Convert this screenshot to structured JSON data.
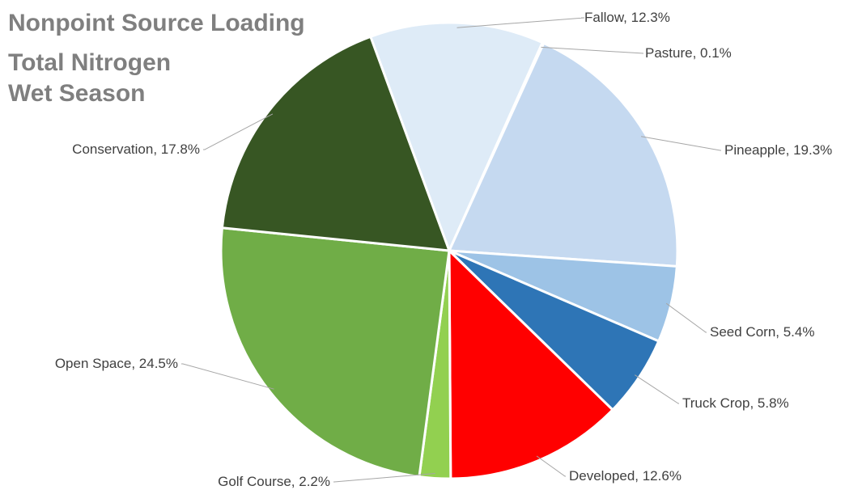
{
  "chart_data": {
    "type": "pie",
    "title_lines": [
      "Nonpoint Source Loading",
      "Total Nitrogen",
      "Wet Season"
    ],
    "slices": [
      {
        "name": "Fallow",
        "value": 12.3,
        "label": "Fallow, 12.3%",
        "color": "#deebf7"
      },
      {
        "name": "Pasture",
        "value": 0.1,
        "label": "Pasture, 0.1%",
        "color": "#c6dbef"
      },
      {
        "name": "Pineapple",
        "value": 19.3,
        "label": "Pineapple, 19.3%",
        "color": "#c5d9f0"
      },
      {
        "name": "Seed Corn",
        "value": 5.4,
        "label": "Seed Corn, 5.4%",
        "color": "#9dc3e6"
      },
      {
        "name": "Truck Crop",
        "value": 5.8,
        "label": "Truck Crop, 5.8%",
        "color": "#2e75b6"
      },
      {
        "name": "Developed",
        "value": 12.6,
        "label": "Developed, 12.6%",
        "color": "#ff0000"
      },
      {
        "name": "Golf Course",
        "value": 2.2,
        "label": "Golf Course, 2.2%",
        "color": "#92d050"
      },
      {
        "name": "Open Space",
        "value": 24.5,
        "label": "Open Space, 24.5%",
        "color": "#70ad47"
      },
      {
        "name": "Conservation",
        "value": 17.8,
        "label": "Conservation, 17.8%",
        "color": "#375623"
      }
    ]
  }
}
